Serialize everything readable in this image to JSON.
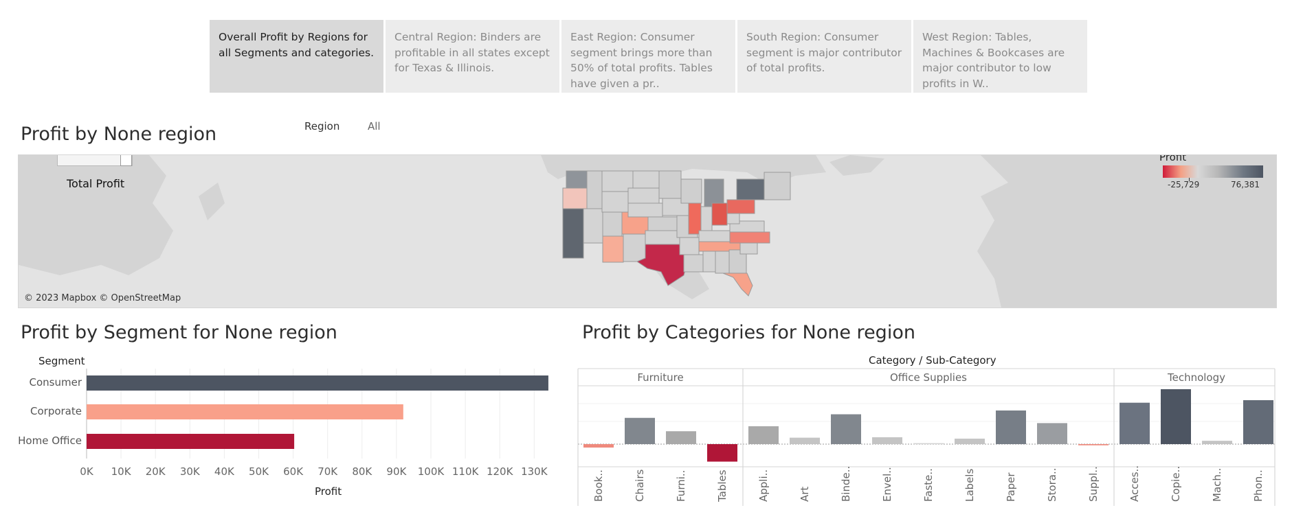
{
  "story": {
    "tabs": [
      {
        "text": "Overall Profit by Regions for all Segments and categories.",
        "active": true
      },
      {
        "text": "Central Region: Binders are profitable in all states except for Texas & Illinois.",
        "active": false
      },
      {
        "text": "East Region: Consumer segment brings more than 50% of total profits. Tables have given a pr..",
        "active": false
      },
      {
        "text": "South Region: Consumer segment is major contributor of total profits.",
        "active": false
      },
      {
        "text": "West Region: Tables, Machines & Bookcases are major contributor to low profits in W..",
        "active": false
      }
    ]
  },
  "map": {
    "title": "Profit by None region",
    "overlay_label": "Total Profit",
    "attribution": "© 2023 Mapbox © OpenStreetMap",
    "legend_title": "Profit",
    "legend_min": "-25,729",
    "legend_max": "76,381"
  },
  "filter": {
    "label": "Region",
    "value": "All"
  },
  "segment": {
    "title": "Profit by Segment for None region",
    "header": "Segment",
    "axis_title": "Profit",
    "tick_labels": [
      "0K",
      "10K",
      "20K",
      "30K",
      "40K",
      "50K",
      "60K",
      "70K",
      "80K",
      "90K",
      "100K",
      "110K",
      "120K",
      "130K"
    ]
  },
  "categories_panel": {
    "title": "Profit by Categories for None region",
    "header": "Category / Sub-Category",
    "groups": [
      "Furniture",
      "Office Supplies",
      "Technology"
    ]
  },
  "chart_data": [
    {
      "type": "bar",
      "orientation": "horizontal",
      "title": "Profit by Segment for None region",
      "xlabel": "Profit",
      "ylabel": "Segment",
      "xlim": [
        0,
        135000
      ],
      "categories": [
        "Consumer",
        "Corporate",
        "Home Office"
      ],
      "values": [
        134119,
        91979,
        60299
      ],
      "colors": [
        "#4d5562",
        "#f9a08a",
        "#b01637"
      ]
    },
    {
      "type": "bar",
      "title": "Profit by Categories for None region",
      "groups": [
        {
          "name": "Furniture",
          "subcategories": [
            "Book..",
            "Chairs",
            "Furni..",
            "Tables"
          ],
          "values": [
            -3473,
            26590,
            13059,
            -17725
          ],
          "colors": [
            "#ef8a7d",
            "#81878e",
            "#a9a9a9",
            "#b01637"
          ]
        },
        {
          "name": "Office Supplies",
          "subcategories": [
            "Appli..",
            "Art",
            "Binde..",
            "Envel..",
            "Faste..",
            "Labels",
            "Paper",
            "Stora..",
            "Suppl.."
          ],
          "values": [
            18138,
            6528,
            30222,
            6964,
            950,
            5546,
            34054,
            21279,
            -1189
          ],
          "colors": [
            "#a9a9a9",
            "#c4c4c4",
            "#81878e",
            "#c4c4c4",
            "#d3d3d3",
            "#c4c4c4",
            "#777e87",
            "#9a9da1",
            "#ef8a7d"
          ]
        },
        {
          "name": "Technology",
          "subcategories": [
            "Acces..",
            "Copie..",
            "Mach..",
            "Phon.."
          ],
          "values": [
            41937,
            55618,
            3385,
            44516
          ],
          "colors": [
            "#6b7380",
            "#4d5562",
            "#c4c4c4",
            "#636b77"
          ]
        }
      ]
    }
  ]
}
